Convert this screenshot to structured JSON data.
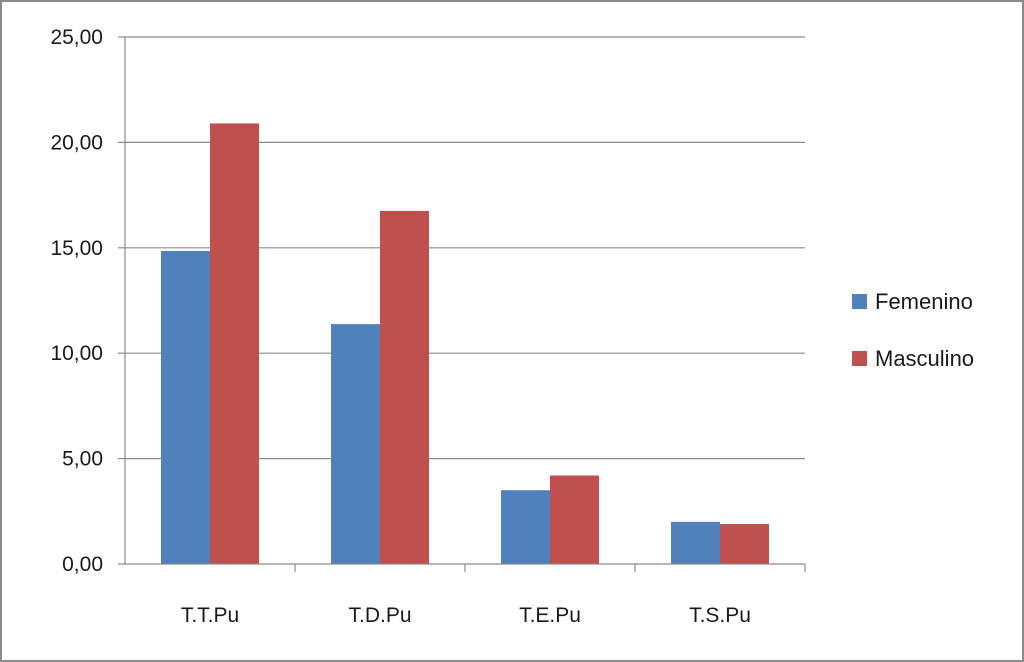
{
  "chart_data": {
    "type": "bar",
    "categories": [
      "T.T.Pu",
      "T.D.Pu",
      "T.E.Pu",
      "T.S.Pu"
    ],
    "series": [
      {
        "name": "Femenino",
        "values": [
          14.85,
          11.38,
          3.5,
          2.0
        ],
        "color": "#4f81bd"
      },
      {
        "name": "Masculino",
        "values": [
          20.9,
          16.75,
          4.2,
          1.9
        ],
        "color": "#c0504d"
      }
    ],
    "ylim": [
      0,
      25
    ],
    "yticks": [
      "0,00",
      "5,00",
      "10,00",
      "15,00",
      "20,00",
      "25,00"
    ],
    "ytick_values": [
      0,
      5,
      10,
      15,
      20,
      25
    ],
    "grid": true,
    "legend_position": "right",
    "title": "",
    "xlabel": "",
    "ylabel": ""
  }
}
